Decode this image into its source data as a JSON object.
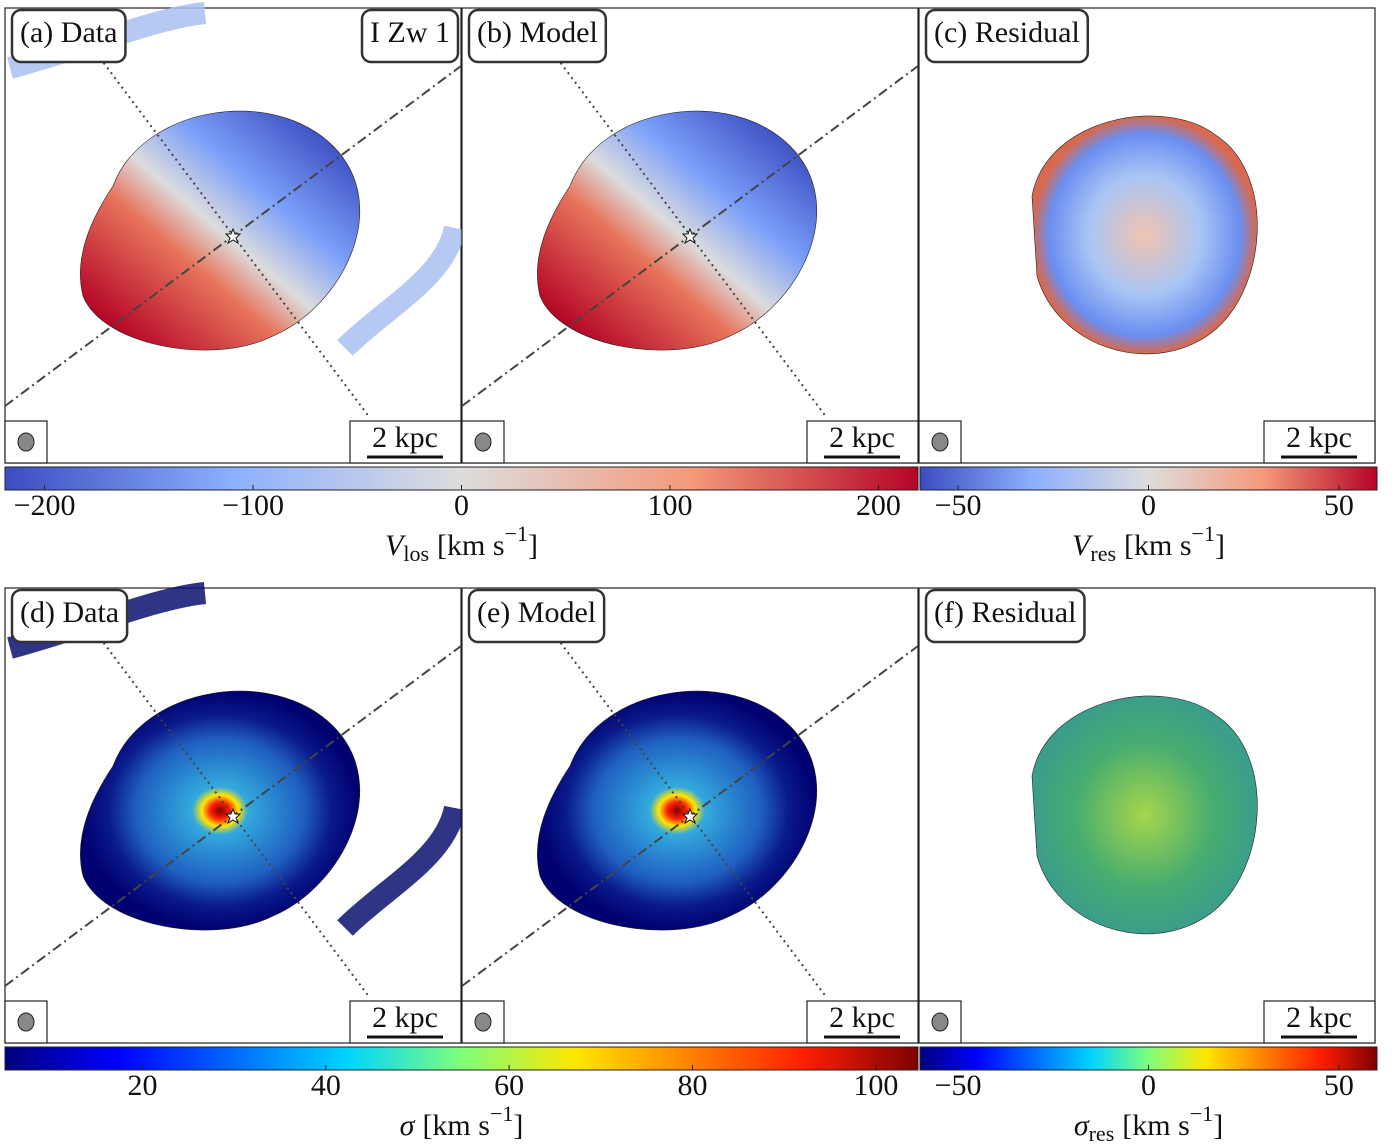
{
  "panels": [
    {
      "label": "(a) Data",
      "annotation": "I Zw 1",
      "scale_bar": "2 kpc"
    },
    {
      "label": "(b) Model",
      "scale_bar": "2 kpc"
    },
    {
      "label": "(c) Residual",
      "scale_bar": "2 kpc"
    },
    {
      "label": "(d) Data",
      "scale_bar": "2 kpc"
    },
    {
      "label": "(e) Model",
      "scale_bar": "2 kpc"
    },
    {
      "label": "(f) Residual",
      "scale_bar": "2 kpc"
    }
  ],
  "colorbars": [
    {
      "colormap": "coolwarm",
      "lim": [
        -219,
        219
      ],
      "ticks": [
        {
          "value": -200,
          "label": "−200"
        },
        {
          "value": -100,
          "label": "−100"
        },
        0,
        100,
        200
      ],
      "label": {
        "symbol": "V",
        "sub": "los",
        "unit": "[km s",
        "sup": "−1",
        "close": "]"
      }
    },
    {
      "colormap": "coolwarm",
      "lim": [
        -60,
        60
      ],
      "ticks": [
        {
          "value": -50,
          "label": "−50"
        },
        0,
        50
      ],
      "label": {
        "symbol": "V",
        "sub": "res",
        "unit": "[km s",
        "sup": "−1",
        "close": "]"
      }
    },
    {
      "colormap": "jet",
      "lim": [
        5,
        104.6
      ],
      "ticks": [
        20,
        40,
        60,
        80,
        100
      ],
      "label": {
        "symbol": "σ",
        "sub": "",
        "unit": "[km s",
        "sup": "−1",
        "close": "]"
      }
    },
    {
      "colormap": "jet",
      "lim": [
        -60,
        60
      ],
      "ticks": [
        {
          "value": -50,
          "label": "−50"
        },
        0,
        50
      ],
      "label": {
        "symbol": "σ",
        "sub": "res",
        "unit": "[km s",
        "sup": "−1",
        "close": "]"
      }
    }
  ]
}
